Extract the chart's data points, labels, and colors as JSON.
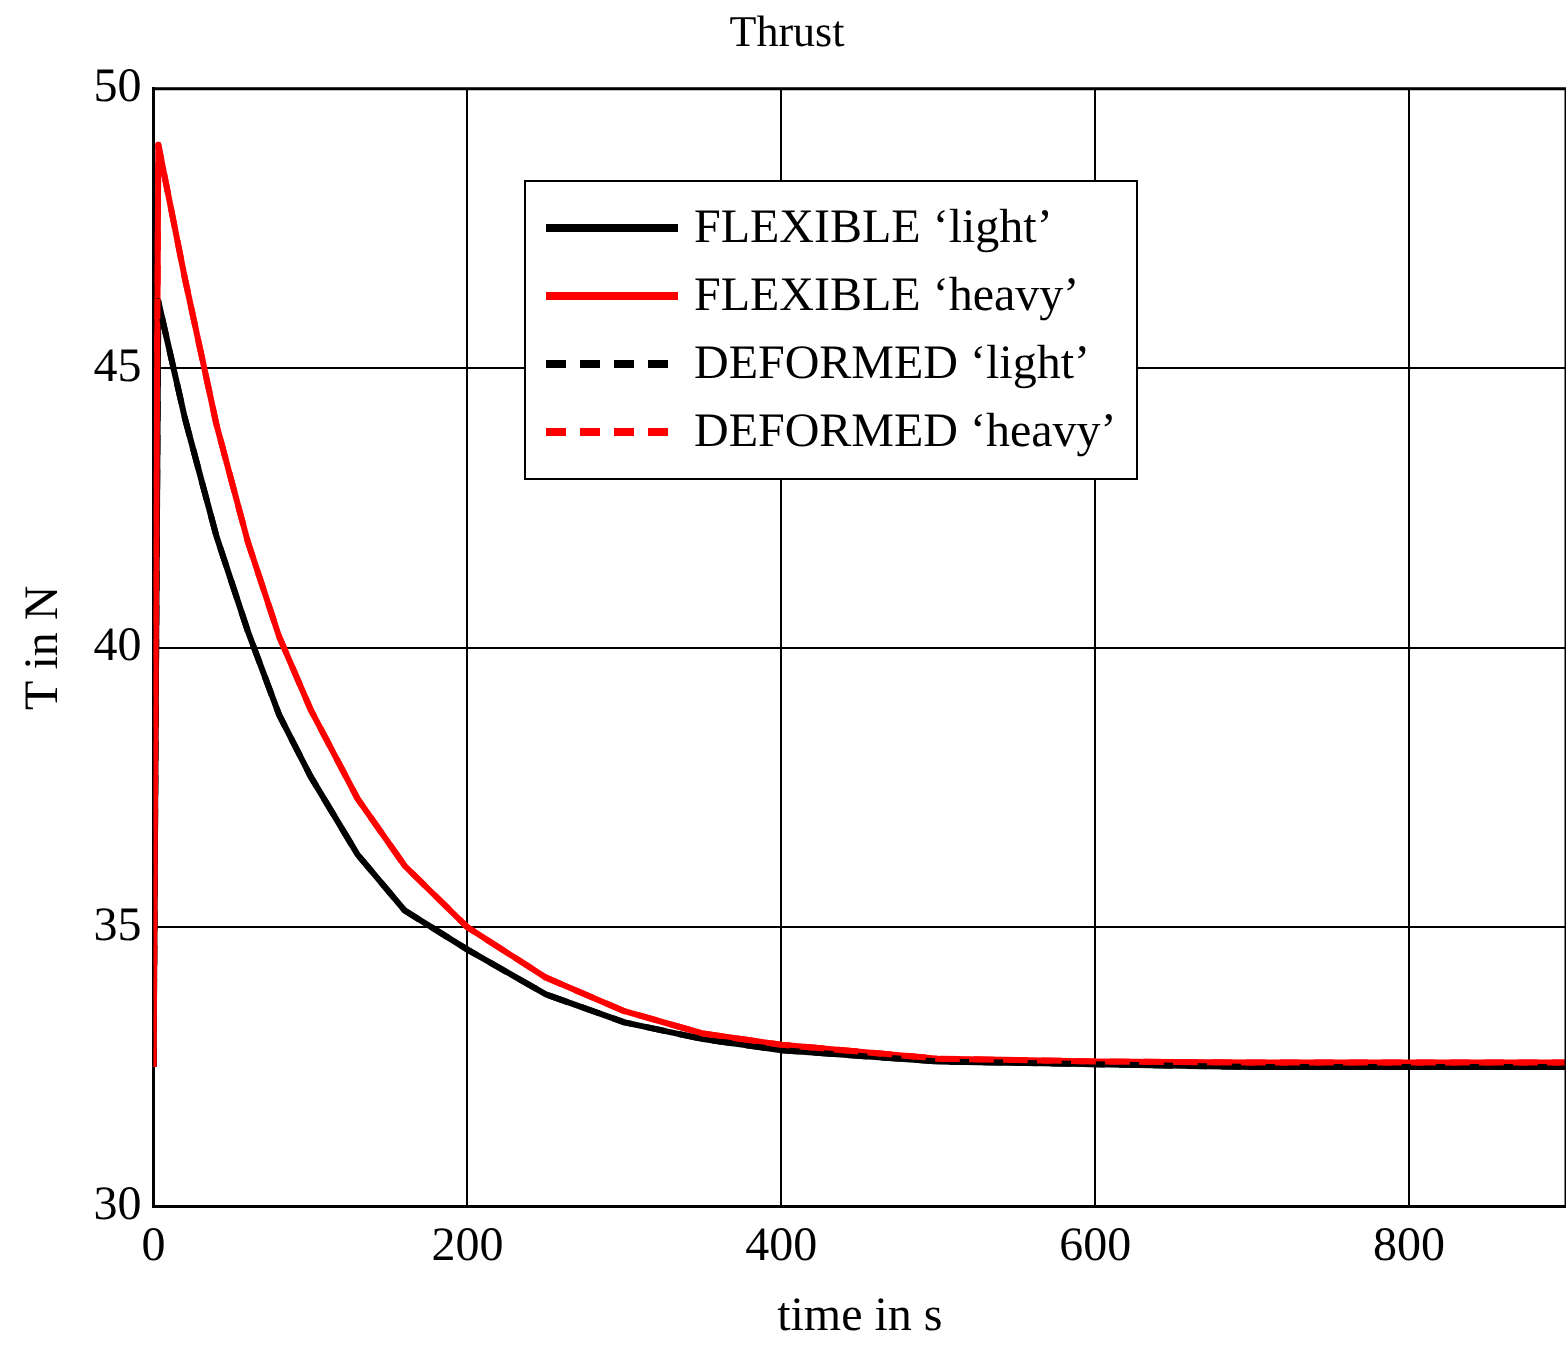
{
  "chart_data": {
    "type": "line",
    "title": "Thrust",
    "xlabel": "time in s",
    "ylabel": "T in N",
    "xlim": [
      0,
      900
    ],
    "ylim": [
      30,
      50
    ],
    "xticks": [
      0,
      200,
      400,
      600,
      800
    ],
    "yticks": [
      30,
      35,
      40,
      45,
      50
    ],
    "grid": true,
    "legend": "top",
    "marker": "none",
    "series": [
      {
        "name": "FLEXIBLE ‘light’",
        "color": "#000000",
        "line_style": "solid",
        "x": [
          0,
          3,
          20,
          40,
          60,
          80,
          100,
          130,
          160,
          200,
          250,
          300,
          350,
          400,
          500,
          600,
          700,
          800,
          900
        ],
        "values": [
          32.5,
          46.2,
          44.1,
          42.0,
          40.3,
          38.8,
          37.7,
          36.3,
          35.3,
          34.6,
          33.8,
          33.3,
          33.0,
          32.8,
          32.6,
          32.55,
          32.5,
          32.5,
          32.5
        ]
      },
      {
        "name": "FLEXIBLE ‘heavy’",
        "color": "#ff0000",
        "line_style": "solid",
        "x": [
          0,
          3,
          20,
          40,
          60,
          80,
          100,
          130,
          160,
          200,
          250,
          300,
          350,
          400,
          500,
          600,
          700,
          800,
          900
        ],
        "values": [
          32.5,
          49.0,
          46.6,
          44.0,
          41.9,
          40.2,
          38.9,
          37.3,
          36.1,
          35.0,
          34.1,
          33.5,
          33.1,
          32.9,
          32.65,
          32.6,
          32.58,
          32.58,
          32.58
        ]
      },
      {
        "name": "DEFORMED ‘light’",
        "color": "#000000",
        "line_style": "dashed",
        "x": [
          0,
          3,
          20,
          40,
          60,
          80,
          100,
          130,
          160,
          200,
          250,
          300,
          350,
          400,
          500,
          600,
          700,
          800,
          900
        ],
        "values": [
          32.5,
          46.2,
          44.1,
          42.0,
          40.3,
          38.8,
          37.7,
          36.3,
          35.3,
          34.6,
          33.8,
          33.3,
          33.0,
          32.8,
          32.6,
          32.55,
          32.5,
          32.5,
          32.5
        ]
      },
      {
        "name": "DEFORMED ‘heavy’",
        "color": "#ff0000",
        "line_style": "dashed",
        "x": [
          0,
          3,
          20,
          40,
          60,
          80,
          100,
          130,
          160,
          200,
          250,
          300,
          350,
          400,
          500,
          600,
          700,
          800,
          900
        ],
        "values": [
          32.5,
          49.0,
          46.6,
          44.0,
          41.9,
          40.2,
          38.9,
          37.3,
          36.1,
          35.0,
          34.1,
          33.5,
          33.1,
          32.9,
          32.65,
          32.6,
          32.58,
          32.58,
          32.58
        ]
      }
    ]
  }
}
